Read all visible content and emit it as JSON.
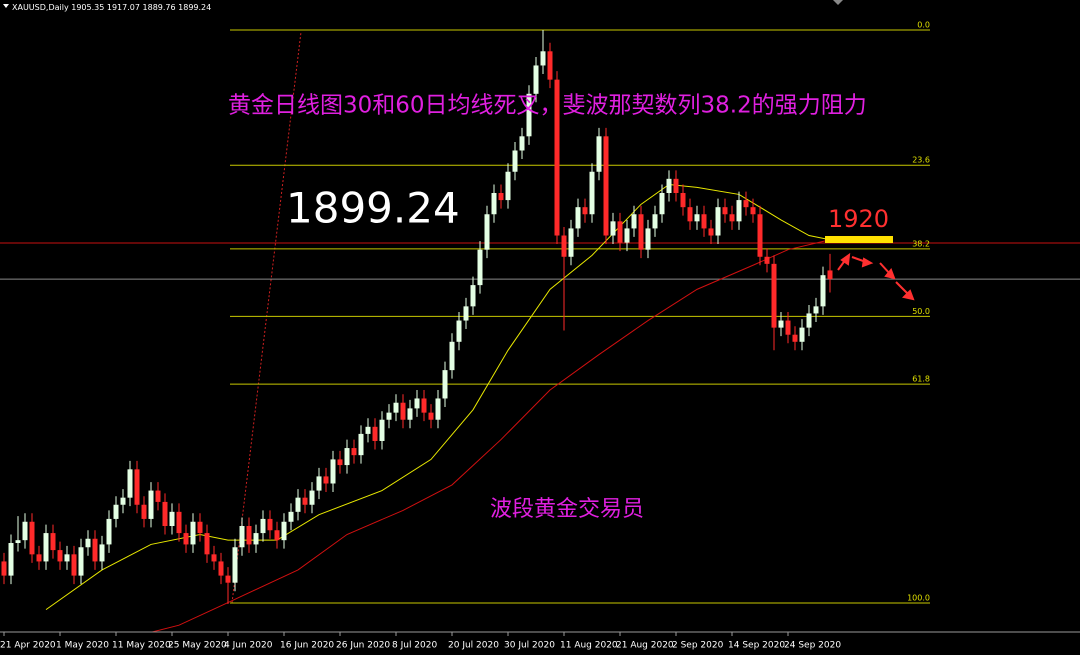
{
  "chart_data": {
    "type": "candlestick",
    "symbol": "XAUUSD,Daily",
    "title": "黄金日线图30和60日均线死叉，斐波那契数列38.2的强力阻力",
    "watermark": "波段黄金交易员",
    "annotation": "1920",
    "ylim": [
      1650.2,
      2096.2
    ],
    "up_color": "#e4ffe4",
    "down_color": "#ff2a2a",
    "candles": {
      "open": [
        1700,
        1690,
        1713,
        1715,
        1728,
        1705,
        1700,
        1720,
        1708,
        1700,
        1705,
        1690,
        1710,
        1716,
        1700,
        1712,
        1730,
        1740,
        1745,
        1765,
        1740,
        1730,
        1750,
        1742,
        1725,
        1735,
        1720,
        1712,
        1728,
        1720,
        1705,
        1700,
        1690,
        1685,
        1710,
        1725,
        1712,
        1720,
        1730,
        1722,
        1715,
        1728,
        1735,
        1745,
        1740,
        1750,
        1760,
        1755,
        1772,
        1768,
        1780,
        1775,
        1790,
        1795,
        1785,
        1800,
        1805,
        1812,
        1800,
        1808,
        1815,
        1805,
        1800,
        1815,
        1835,
        1855,
        1870,
        1880,
        1895,
        1920,
        1945,
        1960,
        1955,
        1975,
        1990,
        2000,
        2030,
        2050,
        2060,
        2040,
        1930,
        1915,
        1935,
        1950,
        1945,
        1975,
        2000,
        1930,
        1940,
        1925,
        1935,
        1945,
        1920,
        1935,
        1945,
        1960,
        1970,
        1960,
        1950,
        1940,
        1945,
        1935,
        1930,
        1950,
        1945,
        1940,
        1955,
        1950,
        1945,
        1915,
        1910,
        1865,
        1870,
        1860,
        1855,
        1865,
        1875,
        1880,
        1905.35
      ],
      "high": [
        1706,
        1719,
        1732,
        1734,
        1734,
        1711,
        1726,
        1726,
        1714,
        1711,
        1711,
        1716,
        1722,
        1722,
        1718,
        1736,
        1746,
        1751,
        1771,
        1771,
        1746,
        1756,
        1756,
        1748,
        1741,
        1741,
        1726,
        1734,
        1734,
        1726,
        1711,
        1706,
        1696,
        1716,
        1731,
        1731,
        1726,
        1736,
        1736,
        1728,
        1734,
        1741,
        1751,
        1751,
        1756,
        1766,
        1766,
        1778,
        1778,
        1786,
        1786,
        1796,
        1801,
        1801,
        1806,
        1811,
        1818,
        1818,
        1814,
        1821,
        1821,
        1811,
        1821,
        1841,
        1861,
        1876,
        1886,
        1901,
        1926,
        1951,
        1966,
        1966,
        1981,
        1996,
        2006,
        2036,
        2056,
        2075,
        2066,
        2046,
        1936,
        1941,
        1956,
        1956,
        1981,
        2006,
        2006,
        1946,
        1946,
        1941,
        1951,
        1951,
        1941,
        1951,
        1966,
        1976,
        1976,
        1966,
        1956,
        1951,
        1951,
        1941,
        1956,
        1956,
        1951,
        1961,
        1961,
        1956,
        1951,
        1921,
        1916,
        1876,
        1876,
        1866,
        1871,
        1881,
        1886,
        1908,
        1917.07
      ],
      "low": [
        1684,
        1684,
        1707,
        1709,
        1699,
        1694,
        1694,
        1702,
        1694,
        1694,
        1684,
        1684,
        1704,
        1694,
        1694,
        1706,
        1724,
        1734,
        1739,
        1734,
        1724,
        1724,
        1736,
        1719,
        1719,
        1714,
        1706,
        1706,
        1714,
        1699,
        1694,
        1684,
        1670,
        1679,
        1704,
        1706,
        1706,
        1714,
        1716,
        1709,
        1709,
        1722,
        1729,
        1734,
        1734,
        1744,
        1749,
        1749,
        1762,
        1762,
        1769,
        1769,
        1784,
        1779,
        1779,
        1794,
        1799,
        1794,
        1794,
        1802,
        1799,
        1794,
        1794,
        1809,
        1829,
        1849,
        1864,
        1874,
        1889,
        1914,
        1939,
        1949,
        1949,
        1969,
        1984,
        1994,
        2024,
        2044,
        2034,
        1924,
        1863,
        1909,
        1929,
        1939,
        1939,
        1969,
        1924,
        1924,
        1919,
        1919,
        1929,
        1914,
        1914,
        1929,
        1939,
        1954,
        1954,
        1944,
        1934,
        1934,
        1929,
        1924,
        1924,
        1939,
        1934,
        1934,
        1944,
        1939,
        1909,
        1904,
        1849,
        1859,
        1854,
        1849,
        1849,
        1859,
        1869,
        1874,
        1889.76
      ],
      "close": [
        1690,
        1713,
        1715,
        1728,
        1705,
        1700,
        1720,
        1708,
        1700,
        1705,
        1690,
        1710,
        1716,
        1700,
        1712,
        1730,
        1740,
        1745,
        1765,
        1740,
        1730,
        1750,
        1742,
        1725,
        1735,
        1720,
        1712,
        1728,
        1720,
        1705,
        1700,
        1690,
        1685,
        1710,
        1725,
        1712,
        1720,
        1730,
        1722,
        1715,
        1728,
        1735,
        1745,
        1740,
        1750,
        1760,
        1755,
        1772,
        1768,
        1780,
        1775,
        1790,
        1795,
        1785,
        1800,
        1805,
        1812,
        1800,
        1808,
        1815,
        1805,
        1800,
        1815,
        1835,
        1855,
        1870,
        1880,
        1895,
        1920,
        1945,
        1960,
        1955,
        1975,
        1990,
        2000,
        2030,
        2050,
        2060,
        2040,
        1930,
        1915,
        1935,
        1950,
        1945,
        1975,
        2000,
        1930,
        1940,
        1925,
        1935,
        1945,
        1920,
        1935,
        1945,
        1960,
        1970,
        1960,
        1950,
        1940,
        1945,
        1935,
        1930,
        1950,
        1945,
        1940,
        1955,
        1950,
        1945,
        1915,
        1910,
        1865,
        1870,
        1860,
        1855,
        1865,
        1875,
        1880,
        1902,
        1899.24
      ]
    },
    "series": [
      {
        "color": "#e8e800",
        "x": [
          6,
          14,
          21,
          28,
          32,
          39,
          45,
          54,
          61,
          67,
          72,
          78,
          84,
          91,
          95,
          99,
          105,
          111,
          115,
          118
        ],
        "values": [
          1666,
          1694,
          1712,
          1719,
          1715,
          1715,
          1733,
          1750,
          1772,
          1807,
          1849,
          1892,
          1916,
          1952,
          1966,
          1964,
          1959,
          1941,
          1930,
          1927
        ]
      },
      {
        "color": "#d01010",
        "x": [
          17,
          25,
          32,
          42,
          49,
          57,
          64,
          71,
          78,
          85,
          92,
          99,
          107,
          112,
          118
        ],
        "values": [
          1645,
          1655,
          1671,
          1694,
          1719,
          1736,
          1754,
          1786,
          1821,
          1846,
          1870,
          1892,
          1909,
          1920,
          1927
        ]
      }
    ],
    "fib_levels": [
      {
        "value": 2075,
        "label": "0.0"
      },
      {
        "value": 1979.6,
        "label": "23.6"
      },
      {
        "value": 1920.6,
        "label": "38.2"
      },
      {
        "value": 1872.9,
        "label": "50.0"
      },
      {
        "value": 1825.1,
        "label": "61.8"
      },
      {
        "value": 1670.7,
        "label": "100.0"
      }
    ],
    "hline": {
      "value": 1924.7,
      "color": "#c81010"
    },
    "xticks": [
      {
        "value": 0,
        "label": "21 Apr 2020"
      },
      {
        "value": 8,
        "label": "1 May 2020"
      },
      {
        "value": 16,
        "label": "11 May 2020"
      },
      {
        "value": 24,
        "label": "25 May 2020"
      },
      {
        "value": 32,
        "label": "4 Jun 2020"
      },
      {
        "value": 40,
        "label": "16 Jun 2020"
      },
      {
        "value": 48,
        "label": "26 Jun 2020"
      },
      {
        "value": 56,
        "label": "8 Jul 2020"
      },
      {
        "value": 64,
        "label": "20 Jul 2020"
      },
      {
        "value": 72,
        "label": "30 Jul 2020"
      },
      {
        "value": 80,
        "label": "11 Aug 2020"
      },
      {
        "value": 88,
        "label": "21 Aug 2020"
      },
      {
        "value": 96,
        "label": "2 Sep 2020"
      },
      {
        "value": 104,
        "label": "14 Sep 2020"
      },
      {
        "value": 112,
        "label": "24 Sep 2020"
      }
    ]
  }
}
